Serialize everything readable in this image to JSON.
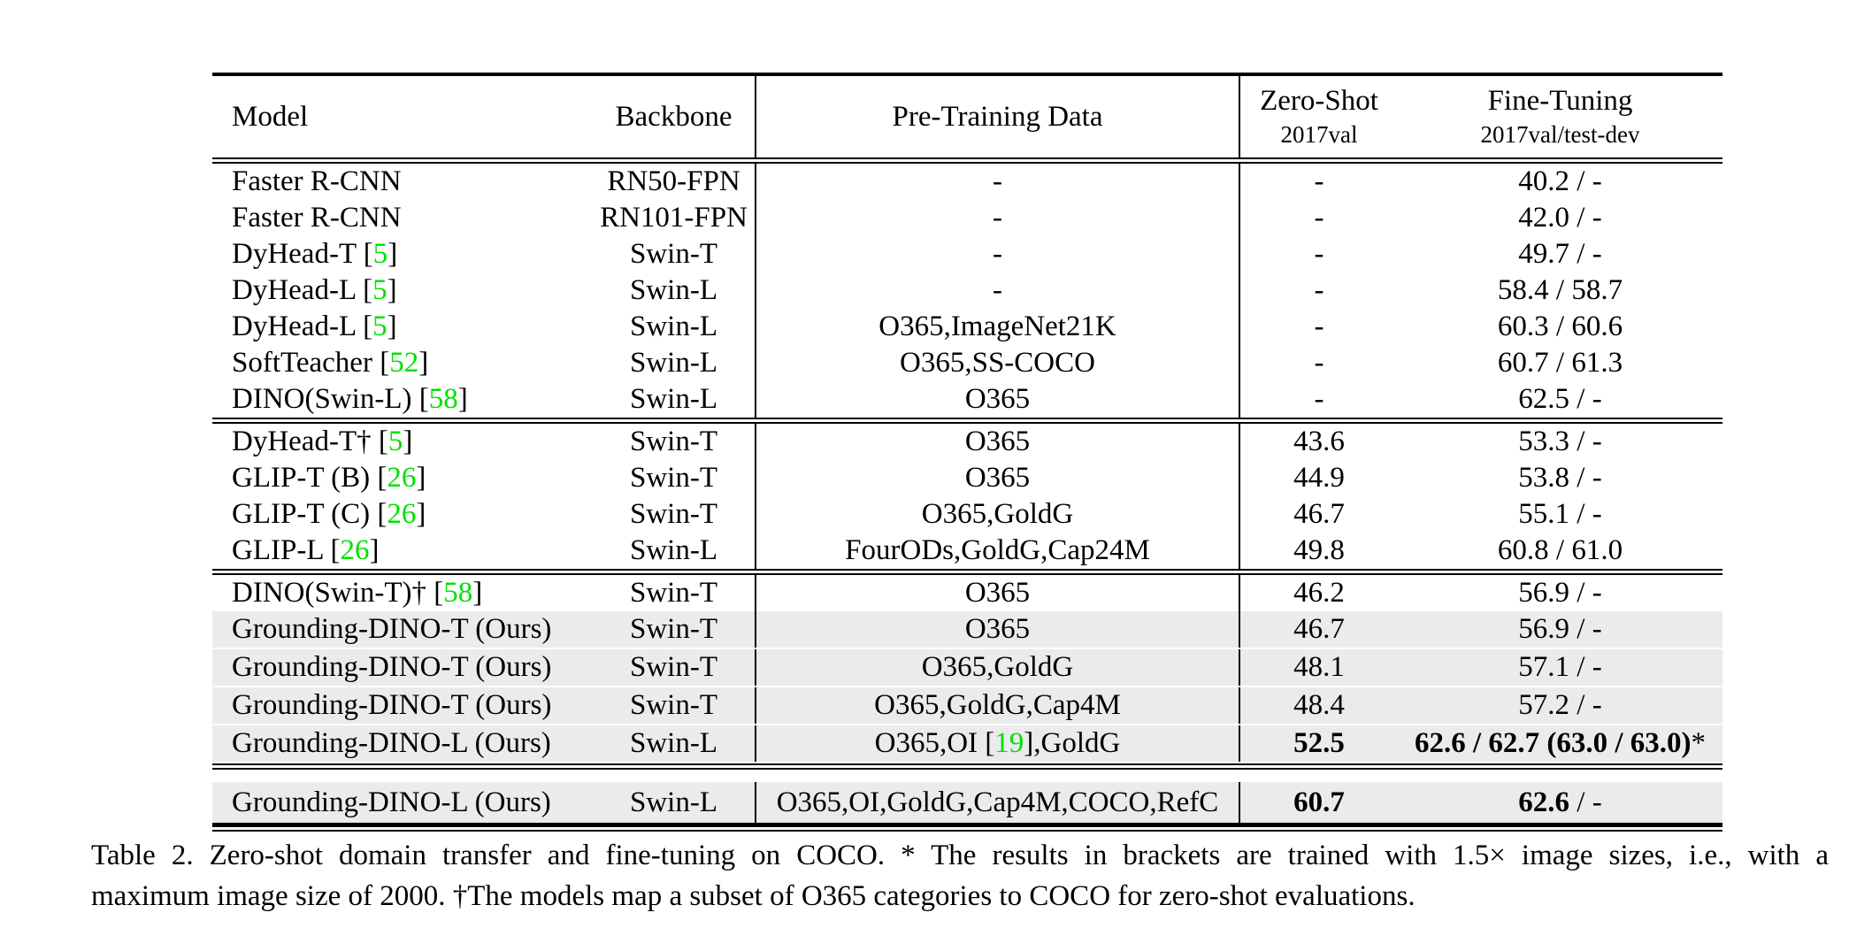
{
  "colors": {
    "citation_green": "#00e000",
    "row_highlight": "#ebebeb"
  },
  "table": {
    "header": {
      "model": "Model",
      "backbone": "Backbone",
      "pretrain": "Pre-Training Data",
      "zeroshot_line1": "Zero-Shot",
      "zeroshot_line2": "2017val",
      "finetune_line1": "Fine-Tuning",
      "finetune_line2": "2017val/test-dev"
    },
    "blocks": [
      {
        "rows": [
          {
            "hl": false,
            "model": [
              {
                "t": "Faster R-CNN"
              }
            ],
            "backbone": [
              {
                "t": "RN50-FPN"
              }
            ],
            "pretrain": [
              {
                "t": "-"
              }
            ],
            "zeroshot": [
              {
                "t": "-"
              }
            ],
            "finetune": [
              {
                "t": "40.2 / -"
              }
            ]
          },
          {
            "hl": false,
            "model": [
              {
                "t": "Faster R-CNN"
              }
            ],
            "backbone": [
              {
                "t": "RN101-FPN"
              }
            ],
            "pretrain": [
              {
                "t": "-"
              }
            ],
            "zeroshot": [
              {
                "t": "-"
              }
            ],
            "finetune": [
              {
                "t": "42.0 / -"
              }
            ]
          },
          {
            "hl": false,
            "model": [
              {
                "t": "DyHead-T ["
              },
              {
                "t": "5",
                "g": true
              },
              {
                "t": "]"
              }
            ],
            "backbone": [
              {
                "t": "Swin-T"
              }
            ],
            "pretrain": [
              {
                "t": "-"
              }
            ],
            "zeroshot": [
              {
                "t": "-"
              }
            ],
            "finetune": [
              {
                "t": "49.7 / -"
              }
            ]
          },
          {
            "hl": false,
            "model": [
              {
                "t": "DyHead-L ["
              },
              {
                "t": "5",
                "g": true
              },
              {
                "t": "]"
              }
            ],
            "backbone": [
              {
                "t": "Swin-L"
              }
            ],
            "pretrain": [
              {
                "t": "-"
              }
            ],
            "zeroshot": [
              {
                "t": "-"
              }
            ],
            "finetune": [
              {
                "t": "58.4 / 58.7"
              }
            ]
          },
          {
            "hl": false,
            "model": [
              {
                "t": "DyHead-L ["
              },
              {
                "t": "5",
                "g": true
              },
              {
                "t": "]"
              }
            ],
            "backbone": [
              {
                "t": "Swin-L"
              }
            ],
            "pretrain": [
              {
                "t": "O365,ImageNet21K"
              }
            ],
            "zeroshot": [
              {
                "t": "-"
              }
            ],
            "finetune": [
              {
                "t": "60.3 / 60.6"
              }
            ]
          },
          {
            "hl": false,
            "model": [
              {
                "t": "SoftTeacher ["
              },
              {
                "t": "52",
                "g": true
              },
              {
                "t": "]"
              }
            ],
            "backbone": [
              {
                "t": "Swin-L"
              }
            ],
            "pretrain": [
              {
                "t": "O365,SS-COCO"
              }
            ],
            "zeroshot": [
              {
                "t": "-"
              }
            ],
            "finetune": [
              {
                "t": "60.7 / 61.3"
              }
            ]
          },
          {
            "hl": false,
            "model": [
              {
                "t": "DINO(Swin-L) ["
              },
              {
                "t": "58",
                "g": true
              },
              {
                "t": "]"
              }
            ],
            "backbone": [
              {
                "t": "Swin-L"
              }
            ],
            "pretrain": [
              {
                "t": "O365"
              }
            ],
            "zeroshot": [
              {
                "t": "-"
              }
            ],
            "finetune": [
              {
                "t": "62.5 / -"
              }
            ]
          }
        ]
      },
      {
        "rows": [
          {
            "hl": false,
            "model": [
              {
                "t": "DyHead-T† ["
              },
              {
                "t": "5",
                "g": true
              },
              {
                "t": "]"
              }
            ],
            "backbone": [
              {
                "t": "Swin-T"
              }
            ],
            "pretrain": [
              {
                "t": "O365"
              }
            ],
            "zeroshot": [
              {
                "t": "43.6"
              }
            ],
            "finetune": [
              {
                "t": "53.3 / -"
              }
            ]
          },
          {
            "hl": false,
            "model": [
              {
                "t": "GLIP-T (B) ["
              },
              {
                "t": "26",
                "g": true
              },
              {
                "t": "]"
              }
            ],
            "backbone": [
              {
                "t": "Swin-T"
              }
            ],
            "pretrain": [
              {
                "t": "O365"
              }
            ],
            "zeroshot": [
              {
                "t": "44.9"
              }
            ],
            "finetune": [
              {
                "t": "53.8 / -"
              }
            ]
          },
          {
            "hl": false,
            "model": [
              {
                "t": "GLIP-T (C) ["
              },
              {
                "t": "26",
                "g": true
              },
              {
                "t": "]"
              }
            ],
            "backbone": [
              {
                "t": "Swin-T"
              }
            ],
            "pretrain": [
              {
                "t": "O365,GoldG"
              }
            ],
            "zeroshot": [
              {
                "t": "46.7"
              }
            ],
            "finetune": [
              {
                "t": "55.1 / -"
              }
            ]
          },
          {
            "hl": false,
            "model": [
              {
                "t": "GLIP-L ["
              },
              {
                "t": "26",
                "g": true
              },
              {
                "t": "]"
              }
            ],
            "backbone": [
              {
                "t": "Swin-L"
              }
            ],
            "pretrain": [
              {
                "t": "FourODs,GoldG,Cap24M"
              }
            ],
            "zeroshot": [
              {
                "t": "49.8"
              }
            ],
            "finetune": [
              {
                "t": "60.8 / 61.0"
              }
            ]
          }
        ]
      },
      {
        "rows": [
          {
            "hl": false,
            "model": [
              {
                "t": "DINO(Swin-T)† ["
              },
              {
                "t": "58",
                "g": true
              },
              {
                "t": "]"
              }
            ],
            "backbone": [
              {
                "t": "Swin-T"
              }
            ],
            "pretrain": [
              {
                "t": "O365"
              }
            ],
            "zeroshot": [
              {
                "t": "46.2"
              }
            ],
            "finetune": [
              {
                "t": "56.9 / -"
              }
            ]
          },
          {
            "hl": true,
            "model": [
              {
                "t": "Grounding-DINO-T (Ours)"
              }
            ],
            "backbone": [
              {
                "t": "Swin-T"
              }
            ],
            "pretrain": [
              {
                "t": "O365"
              }
            ],
            "zeroshot": [
              {
                "t": "46.7"
              }
            ],
            "finetune": [
              {
                "t": "56.9 / -"
              }
            ]
          },
          {
            "hl": true,
            "model": [
              {
                "t": "Grounding-DINO-T (Ours)"
              }
            ],
            "backbone": [
              {
                "t": "Swin-T"
              }
            ],
            "pretrain": [
              {
                "t": "O365,GoldG"
              }
            ],
            "zeroshot": [
              {
                "t": "48.1"
              }
            ],
            "finetune": [
              {
                "t": "57.1 / -"
              }
            ]
          },
          {
            "hl": true,
            "model": [
              {
                "t": "Grounding-DINO-T (Ours)"
              }
            ],
            "backbone": [
              {
                "t": "Swin-T"
              }
            ],
            "pretrain": [
              {
                "t": "O365,GoldG,Cap4M"
              }
            ],
            "zeroshot": [
              {
                "t": "48.4"
              }
            ],
            "finetune": [
              {
                "t": "57.2 / -"
              }
            ]
          },
          {
            "hl": true,
            "model": [
              {
                "t": "Grounding-DINO-L (Ours)"
              }
            ],
            "backbone": [
              {
                "t": "Swin-L"
              }
            ],
            "pretrain": [
              {
                "t": "O365,OI ["
              },
              {
                "t": "19",
                "g": true
              },
              {
                "t": "],GoldG"
              }
            ],
            "zeroshot": [
              {
                "t": "52.5",
                "b": true
              }
            ],
            "finetune": [
              {
                "t": "62.6 / 62.7 (63.0 / 63.0)",
                "b": true
              },
              {
                "t": "*"
              }
            ]
          }
        ]
      },
      {
        "rows": [
          {
            "hl": true,
            "model": [
              {
                "t": "Grounding-DINO-L (Ours)"
              }
            ],
            "backbone": [
              {
                "t": "Swin-L"
              }
            ],
            "pretrain": [
              {
                "t": "O365,OI,GoldG,Cap4M,COCO,RefC"
              }
            ],
            "zeroshot": [
              {
                "t": "60.7",
                "b": true
              }
            ],
            "finetune": [
              {
                "t": "62.6",
                "b": true
              },
              {
                "t": " / -"
              }
            ]
          }
        ]
      }
    ]
  },
  "caption": {
    "line1": "Table 2.  Zero-shot domain transfer and fine-tuning on COCO. * The results in brackets are trained with 1.5× image sizes, i.e., with a",
    "line2": "maximum image size of 2000. †The models map a subset of O365 categories to COCO for zero-shot evaluations."
  }
}
